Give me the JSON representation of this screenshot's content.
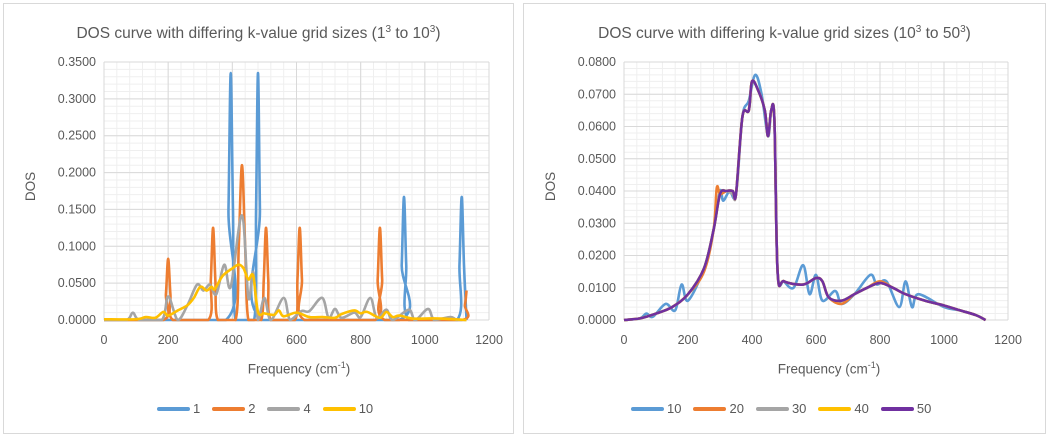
{
  "chart_data": [
    {
      "type": "line",
      "title": {
        "prefix": "DOS curve with differing k-value grid sizes (1",
        "sup1": "3",
        "mid": " to 10",
        "sup2": "3",
        "suffix": ")"
      },
      "xlabel": {
        "text": "Frequency (cm",
        "sup": "-1",
        "suffix": ")"
      },
      "ylabel": "DOS",
      "xlim": [
        0,
        1200
      ],
      "xticks": [
        0,
        200,
        400,
        600,
        800,
        1000,
        1200
      ],
      "ylim": [
        0,
        0.35
      ],
      "yticks": [
        "0.0000",
        "0.0500",
        "0.1000",
        "0.1500",
        "0.2000",
        "0.2500",
        "0.3000",
        "0.3500"
      ],
      "grid": true,
      "legend_position": "bottom",
      "series": [
        {
          "name": "1",
          "color": "#5B9BD5",
          "x": [
            0,
            380,
            388,
            395,
            402,
            410,
            468,
            474,
            480,
            486,
            492,
            920,
            928,
            935,
            942,
            950,
            1100,
            1108,
            1115,
            1122,
            1130
          ],
          "y": [
            0,
            0,
            0.15,
            0.335,
            0.15,
            0,
            0,
            0.15,
            0.335,
            0.15,
            0,
            0,
            0.075,
            0.167,
            0.075,
            0,
            0,
            0.075,
            0.167,
            0.075,
            0
          ]
        },
        {
          "name": "2",
          "color": "#ED7D31",
          "x": [
            0,
            185,
            193,
            200,
            207,
            215,
            325,
            333,
            340,
            347,
            355,
            410,
            420,
            430,
            440,
            450,
            490,
            498,
            505,
            512,
            520,
            595,
            603,
            610,
            617,
            625,
            845,
            853,
            860,
            867,
            875,
            1115,
            1125,
            1130
          ],
          "y": [
            0,
            0,
            0.035,
            0.083,
            0.035,
            0,
            0,
            0.055,
            0.125,
            0.055,
            0,
            0,
            0.1,
            0.21,
            0.1,
            0,
            0,
            0.055,
            0.125,
            0.055,
            0,
            0,
            0.055,
            0.125,
            0.055,
            0,
            0,
            0.055,
            0.125,
            0.055,
            0,
            0,
            0.02,
            0.04
          ]
        },
        {
          "name": "4",
          "color": "#A5A5A5",
          "x": [
            0,
            70,
            90,
            110,
            180,
            200,
            230,
            260,
            290,
            310,
            330,
            350,
            375,
            395,
            430,
            450,
            465,
            480,
            500,
            520,
            560,
            580,
            615,
            640,
            680,
            700,
            720,
            740,
            780,
            800,
            830,
            850,
            880,
            900,
            950,
            970,
            1010,
            1030,
            1080,
            1100,
            1130
          ],
          "y": [
            0,
            0,
            0.01,
            0,
            0,
            0.032,
            0,
            0.02,
            0.048,
            0.04,
            0.048,
            0.035,
            0.075,
            0.045,
            0.142,
            0.03,
            0.065,
            0,
            0.03,
            0,
            0.03,
            0,
            0.012,
            0.012,
            0.03,
            0.003,
            0.015,
            0.003,
            0.01,
            0.004,
            0.03,
            0.003,
            0.014,
            0,
            0.014,
            0,
            0.015,
            0,
            0.004,
            0,
            0
          ]
        },
        {
          "name": "10",
          "color": "#FFC000",
          "x": [
            0,
            100,
            130,
            160,
            185,
            200,
            230,
            260,
            280,
            300,
            320,
            335,
            345,
            370,
            400,
            420,
            435,
            450,
            465,
            480,
            500,
            530,
            545,
            560,
            600,
            640,
            680,
            720,
            740,
            780,
            800,
            820,
            860,
            880,
            900,
            920,
            960,
            1000,
            1050,
            1130
          ],
          "y": [
            0.001,
            0.001,
            0.004,
            0.003,
            0.011,
            0.006,
            0.013,
            0.02,
            0.03,
            0.045,
            0.04,
            0.045,
            0.042,
            0.06,
            0.07,
            0.075,
            0.07,
            0.055,
            0.06,
            0.011,
            0.009,
            0.007,
            0.013,
            0.005,
            0.01,
            0.004,
            0.004,
            0.003,
            0.008,
            0.013,
            0.009,
            0.011,
            0.003,
            0.011,
            0.004,
            0.006,
            0.002,
            0.002,
            0.002,
            0
          ]
        }
      ]
    },
    {
      "type": "line",
      "title": {
        "prefix": "DOS curve with differing k-value grid sizes (10",
        "sup1": "3",
        "mid": " to 50",
        "sup2": "3",
        "suffix": ")"
      },
      "xlabel": {
        "text": "Frequency (cm",
        "sup": "-1",
        "suffix": ")"
      },
      "ylabel": "DOS",
      "xlim": [
        0,
        1200
      ],
      "xticks": [
        0,
        200,
        400,
        600,
        800,
        1000,
        1200
      ],
      "ylim": [
        0,
        0.08
      ],
      "yticks": [
        "0.0000",
        "0.0100",
        "0.0200",
        "0.0300",
        "0.0400",
        "0.0500",
        "0.0600",
        "0.0700",
        "0.0800"
      ],
      "grid": true,
      "legend_position": "bottom",
      "series": [
        {
          "name": "10",
          "color": "#5B9BD5",
          "x": [
            0,
            50,
            70,
            90,
            130,
            160,
            180,
            200,
            250,
            280,
            300,
            310,
            330,
            350,
            370,
            390,
            410,
            430,
            450,
            460,
            470,
            480,
            500,
            530,
            560,
            580,
            600,
            620,
            660,
            680,
            720,
            770,
            790,
            820,
            860,
            880,
            900,
            920,
            1000,
            1050,
            1100,
            1130
          ],
          "y": [
            0,
            0.0005,
            0.002,
            0.001,
            0.005,
            0.003,
            0.011,
            0.006,
            0.016,
            0.028,
            0.04,
            0.037,
            0.04,
            0.039,
            0.063,
            0.068,
            0.076,
            0.07,
            0.057,
            0.065,
            0.062,
            0.015,
            0.012,
            0.01,
            0.017,
            0.008,
            0.014,
            0.006,
            0.009,
            0.005,
            0.008,
            0.014,
            0.011,
            0.012,
            0.004,
            0.012,
            0.004,
            0.008,
            0.004,
            0.003,
            0.0015,
            0
          ]
        },
        {
          "name": "20",
          "color": "#ED7D31",
          "x": [
            0,
            50,
            100,
            150,
            200,
            250,
            280,
            290,
            300,
            320,
            340,
            350,
            370,
            390,
            400,
            420,
            440,
            450,
            460,
            470,
            480,
            500,
            560,
            600,
            620,
            640,
            680,
            720,
            760,
            800,
            840,
            880,
            940,
            1000,
            1050,
            1100,
            1130
          ],
          "y": [
            0,
            0.0005,
            0.002,
            0.004,
            0.008,
            0.015,
            0.028,
            0.041,
            0.039,
            0.04,
            0.04,
            0.039,
            0.063,
            0.065,
            0.074,
            0.071,
            0.065,
            0.057,
            0.065,
            0.062,
            0.015,
            0.012,
            0.011,
            0.013,
            0.012,
            0.007,
            0.005,
            0.008,
            0.01,
            0.012,
            0.01,
            0.008,
            0.006,
            0.0045,
            0.003,
            0.0015,
            0
          ]
        },
        {
          "name": "30",
          "color": "#A5A5A5",
          "x": [
            0,
            50,
            100,
            150,
            200,
            250,
            280,
            300,
            320,
            340,
            350,
            370,
            390,
            400,
            420,
            440,
            450,
            460,
            470,
            480,
            500,
            560,
            600,
            620,
            640,
            680,
            720,
            760,
            800,
            840,
            880,
            940,
            1000,
            1050,
            1100,
            1130
          ],
          "y": [
            0,
            0.0005,
            0.002,
            0.004,
            0.008,
            0.016,
            0.028,
            0.039,
            0.04,
            0.039,
            0.039,
            0.063,
            0.065,
            0.074,
            0.071,
            0.065,
            0.057,
            0.065,
            0.062,
            0.015,
            0.012,
            0.011,
            0.013,
            0.012,
            0.007,
            0.006,
            0.008,
            0.01,
            0.0115,
            0.01,
            0.008,
            0.006,
            0.0045,
            0.003,
            0.0015,
            0
          ]
        },
        {
          "name": "40",
          "color": "#FFC000",
          "x": [
            0,
            50,
            100,
            150,
            200,
            250,
            280,
            300,
            320,
            340,
            350,
            370,
            390,
            400,
            420,
            440,
            450,
            460,
            470,
            480,
            500,
            560,
            600,
            620,
            640,
            680,
            720,
            760,
            800,
            840,
            880,
            940,
            1000,
            1050,
            1100,
            1130
          ],
          "y": [
            0,
            0.0005,
            0.002,
            0.004,
            0.008,
            0.016,
            0.028,
            0.039,
            0.04,
            0.04,
            0.039,
            0.063,
            0.065,
            0.074,
            0.071,
            0.065,
            0.057,
            0.065,
            0.062,
            0.015,
            0.012,
            0.011,
            0.013,
            0.012,
            0.007,
            0.006,
            0.008,
            0.01,
            0.0115,
            0.01,
            0.008,
            0.006,
            0.0045,
            0.003,
            0.0015,
            0
          ]
        },
        {
          "name": "50",
          "color": "#7030A0",
          "x": [
            0,
            50,
            100,
            150,
            200,
            250,
            280,
            300,
            320,
            340,
            350,
            370,
            390,
            400,
            420,
            440,
            450,
            460,
            470,
            480,
            500,
            560,
            600,
            620,
            640,
            680,
            720,
            760,
            800,
            840,
            880,
            940,
            1000,
            1050,
            1100,
            1130
          ],
          "y": [
            0,
            0.0005,
            0.002,
            0.004,
            0.008,
            0.016,
            0.028,
            0.039,
            0.04,
            0.04,
            0.039,
            0.063,
            0.065,
            0.074,
            0.071,
            0.065,
            0.057,
            0.065,
            0.062,
            0.015,
            0.012,
            0.011,
            0.013,
            0.012,
            0.007,
            0.006,
            0.008,
            0.01,
            0.0115,
            0.01,
            0.008,
            0.006,
            0.0045,
            0.003,
            0.0015,
            0
          ]
        }
      ]
    }
  ]
}
